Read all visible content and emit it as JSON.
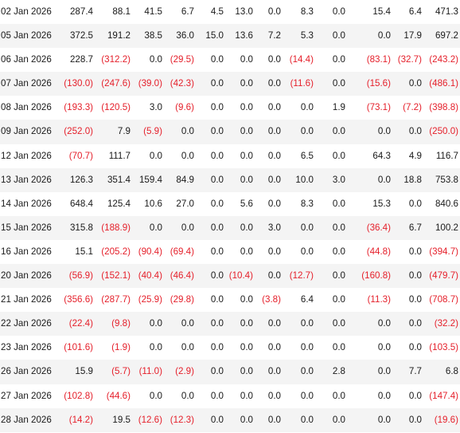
{
  "colors": {
    "negative": "#e5202b",
    "text": "#1a1a1a",
    "stripe": "#f4f4f4"
  },
  "rows": [
    {
      "date": "02 Jan 2026",
      "values": [
        "287.4",
        "88.1",
        "41.5",
        "6.7",
        "4.5",
        "13.0",
        "0.0",
        "8.3",
        "0.0",
        "15.4",
        "6.4",
        "471.3"
      ]
    },
    {
      "date": "05 Jan 2026",
      "values": [
        "372.5",
        "191.2",
        "38.5",
        "36.0",
        "15.0",
        "13.6",
        "7.2",
        "5.3",
        "0.0",
        "0.0",
        "17.9",
        "697.2"
      ]
    },
    {
      "date": "06 Jan 2026",
      "values": [
        "228.7",
        "(312.2)",
        "0.0",
        "(29.5)",
        "0.0",
        "0.0",
        "0.0",
        "(14.4)",
        "0.0",
        "(83.1)",
        "(32.7)",
        "(243.2)"
      ]
    },
    {
      "date": "07 Jan 2026",
      "values": [
        "(130.0)",
        "(247.6)",
        "(39.0)",
        "(42.3)",
        "0.0",
        "0.0",
        "0.0",
        "(11.6)",
        "0.0",
        "(15.6)",
        "0.0",
        "(486.1)"
      ]
    },
    {
      "date": "08 Jan 2026",
      "values": [
        "(193.3)",
        "(120.5)",
        "3.0",
        "(9.6)",
        "0.0",
        "0.0",
        "0.0",
        "0.0",
        "1.9",
        "(73.1)",
        "(7.2)",
        "(398.8)"
      ]
    },
    {
      "date": "09 Jan 2026",
      "values": [
        "(252.0)",
        "7.9",
        "(5.9)",
        "0.0",
        "0.0",
        "0.0",
        "0.0",
        "0.0",
        "0.0",
        "0.0",
        "0.0",
        "(250.0)"
      ]
    },
    {
      "date": "12 Jan 2026",
      "values": [
        "(70.7)",
        "111.7",
        "0.0",
        "0.0",
        "0.0",
        "0.0",
        "0.0",
        "6.5",
        "0.0",
        "64.3",
        "4.9",
        "116.7"
      ]
    },
    {
      "date": "13 Jan 2026",
      "values": [
        "126.3",
        "351.4",
        "159.4",
        "84.9",
        "0.0",
        "0.0",
        "0.0",
        "10.0",
        "3.0",
        "0.0",
        "18.8",
        "753.8"
      ]
    },
    {
      "date": "14 Jan 2026",
      "values": [
        "648.4",
        "125.4",
        "10.6",
        "27.0",
        "0.0",
        "5.6",
        "0.0",
        "8.3",
        "0.0",
        "15.3",
        "0.0",
        "840.6"
      ]
    },
    {
      "date": "15 Jan 2026",
      "values": [
        "315.8",
        "(188.9)",
        "0.0",
        "0.0",
        "0.0",
        "0.0",
        "3.0",
        "0.0",
        "0.0",
        "(36.4)",
        "6.7",
        "100.2"
      ]
    },
    {
      "date": "16 Jan 2026",
      "values": [
        "15.1",
        "(205.2)",
        "(90.4)",
        "(69.4)",
        "0.0",
        "0.0",
        "0.0",
        "0.0",
        "0.0",
        "(44.8)",
        "0.0",
        "(394.7)"
      ]
    },
    {
      "date": "20 Jan 2026",
      "values": [
        "(56.9)",
        "(152.1)",
        "(40.4)",
        "(46.4)",
        "0.0",
        "(10.4)",
        "0.0",
        "(12.7)",
        "0.0",
        "(160.8)",
        "0.0",
        "(479.7)"
      ]
    },
    {
      "date": "21 Jan 2026",
      "values": [
        "(356.6)",
        "(287.7)",
        "(25.9)",
        "(29.8)",
        "0.0",
        "0.0",
        "(3.8)",
        "6.4",
        "0.0",
        "(11.3)",
        "0.0",
        "(708.7)"
      ]
    },
    {
      "date": "22 Jan 2026",
      "values": [
        "(22.4)",
        "(9.8)",
        "0.0",
        "0.0",
        "0.0",
        "0.0",
        "0.0",
        "0.0",
        "0.0",
        "0.0",
        "0.0",
        "(32.2)"
      ]
    },
    {
      "date": "23 Jan 2026",
      "values": [
        "(101.6)",
        "(1.9)",
        "0.0",
        "0.0",
        "0.0",
        "0.0",
        "0.0",
        "0.0",
        "0.0",
        "0.0",
        "0.0",
        "(103.5)"
      ]
    },
    {
      "date": "26 Jan 2026",
      "values": [
        "15.9",
        "(5.7)",
        "(11.0)",
        "(2.9)",
        "0.0",
        "0.0",
        "0.0",
        "0.0",
        "2.8",
        "0.0",
        "7.7",
        "6.8"
      ]
    },
    {
      "date": "27 Jan 2026",
      "values": [
        "(102.8)",
        "(44.6)",
        "0.0",
        "0.0",
        "0.0",
        "0.0",
        "0.0",
        "0.0",
        "0.0",
        "0.0",
        "0.0",
        "(147.4)"
      ]
    },
    {
      "date": "28 Jan 2026",
      "values": [
        "(14.2)",
        "19.5",
        "(12.6)",
        "(12.3)",
        "0.0",
        "0.0",
        "0.0",
        "0.0",
        "0.0",
        "0.0",
        "0.0",
        "(19.6)"
      ]
    }
  ]
}
